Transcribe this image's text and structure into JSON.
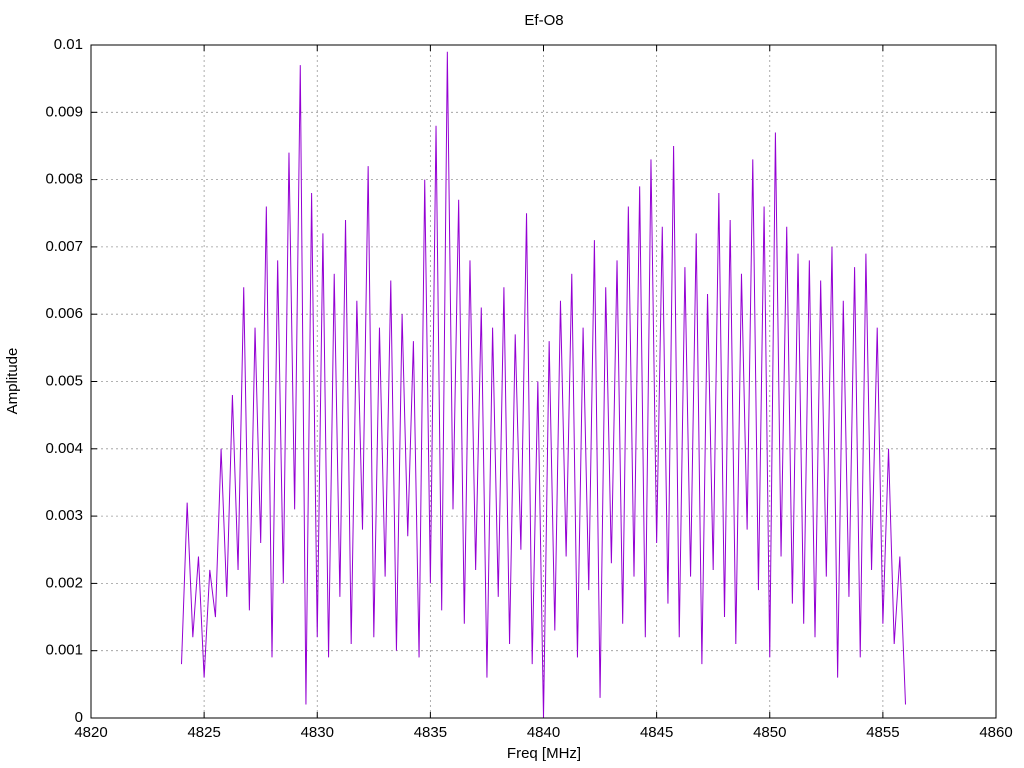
{
  "chart_data": {
    "type": "line",
    "title": "Ef-O8",
    "x_label": "Freq [MHz]",
    "y_label": "Amplitude",
    "color": "#9400d3",
    "grid": true,
    "xlim": [
      4820,
      4860
    ],
    "xticks": [
      4820,
      4825,
      4830,
      4835,
      4840,
      4845,
      4850,
      4855,
      4860
    ],
    "ylim": [
      0,
      0.01
    ],
    "yticks": [
      0,
      0.001,
      0.002,
      0.003,
      0.004,
      0.005,
      0.006,
      0.007,
      0.008,
      0.009,
      0.01
    ],
    "x": [
      4824,
      4824.25,
      4824.5,
      4824.75,
      4825,
      4825.25,
      4825.5,
      4825.75,
      4826,
      4826.25,
      4826.5,
      4826.75,
      4827,
      4827.25,
      4827.5,
      4827.75,
      4828,
      4828.25,
      4828.5,
      4828.75,
      4829,
      4829.25,
      4829.5,
      4829.75,
      4830,
      4830.25,
      4830.5,
      4830.75,
      4831,
      4831.25,
      4831.5,
      4831.75,
      4832,
      4832.25,
      4832.5,
      4832.75,
      4833,
      4833.25,
      4833.5,
      4833.75,
      4834,
      4834.25,
      4834.5,
      4834.75,
      4835,
      4835.25,
      4835.5,
      4835.75,
      4836,
      4836.25,
      4836.5,
      4836.75,
      4837,
      4837.25,
      4837.5,
      4837.75,
      4838,
      4838.25,
      4838.5,
      4838.75,
      4839,
      4839.25,
      4839.5,
      4839.75,
      4840,
      4840.25,
      4840.5,
      4840.75,
      4841,
      4841.25,
      4841.5,
      4841.75,
      4842,
      4842.25,
      4842.5,
      4842.75,
      4843,
      4843.25,
      4843.5,
      4843.75,
      4844,
      4844.25,
      4844.5,
      4844.75,
      4845,
      4845.25,
      4845.5,
      4845.75,
      4846,
      4846.25,
      4846.5,
      4846.75,
      4847,
      4847.25,
      4847.5,
      4847.75,
      4848,
      4848.25,
      4848.5,
      4848.75,
      4849,
      4849.25,
      4849.5,
      4849.75,
      4850,
      4850.25,
      4850.5,
      4850.75,
      4851,
      4851.25,
      4851.5,
      4851.75,
      4852,
      4852.25,
      4852.5,
      4852.75,
      4853,
      4853.25,
      4853.5,
      4853.75,
      4854,
      4854.25,
      4854.5,
      4854.75,
      4855,
      4855.25,
      4855.5,
      4855.75,
      4856
    ],
    "values": [
      0.0008,
      0.0032,
      0.0012,
      0.0024,
      0.0006,
      0.0022,
      0.0015,
      0.004,
      0.0018,
      0.0048,
      0.0022,
      0.0064,
      0.0016,
      0.0058,
      0.0026,
      0.0076,
      0.0009,
      0.0068,
      0.002,
      0.0084,
      0.0031,
      0.0097,
      0.0002,
      0.0078,
      0.0012,
      0.0072,
      0.0009,
      0.0066,
      0.0018,
      0.0074,
      0.0011,
      0.0062,
      0.0028,
      0.0082,
      0.0012,
      0.0058,
      0.0021,
      0.0065,
      0.001,
      0.006,
      0.0027,
      0.0056,
      0.0009,
      0.008,
      0.002,
      0.0088,
      0.0016,
      0.0099,
      0.0031,
      0.0077,
      0.0014,
      0.0068,
      0.0022,
      0.0061,
      0.0006,
      0.0058,
      0.0018,
      0.0064,
      0.0011,
      0.0057,
      0.0025,
      0.0075,
      0.0008,
      0.005,
      0.0,
      0.0056,
      0.0013,
      0.0062,
      0.0024,
      0.0066,
      0.0009,
      0.0058,
      0.0019,
      0.0071,
      0.0003,
      0.0064,
      0.0023,
      0.0068,
      0.0014,
      0.0076,
      0.0021,
      0.0079,
      0.0012,
      0.0083,
      0.0026,
      0.0073,
      0.0017,
      0.0085,
      0.0012,
      0.0067,
      0.0021,
      0.0072,
      0.0008,
      0.0063,
      0.0022,
      0.0078,
      0.0015,
      0.0074,
      0.0011,
      0.0066,
      0.0028,
      0.0083,
      0.0019,
      0.0076,
      0.0009,
      0.0087,
      0.0024,
      0.0073,
      0.0017,
      0.0069,
      0.0014,
      0.0068,
      0.0012,
      0.0065,
      0.0021,
      0.007,
      0.0006,
      0.0062,
      0.0018,
      0.0067,
      0.0009,
      0.0069,
      0.0022,
      0.0058,
      0.0014,
      0.004,
      0.0011,
      0.0024,
      0.0002
    ]
  }
}
